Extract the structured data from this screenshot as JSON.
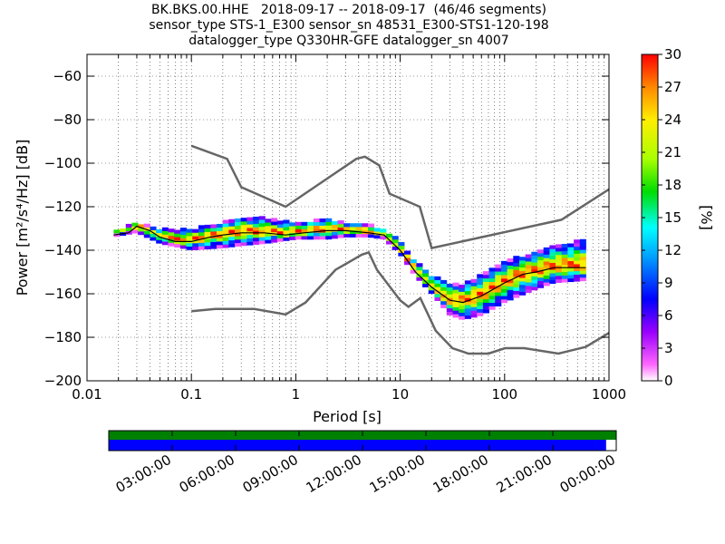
{
  "title": {
    "line1": "BK.BKS.00.HHE   2018-09-17 -- 2018-09-17  (46/46 segments)",
    "line2": "sensor_type STS-1_E300 sensor_sn 48531_E300-STS1-120-198",
    "line3": "datalogger_type Q330HR-GFE datalogger_sn 4007"
  },
  "colors": {
    "noise_model": "#666666",
    "mean_line": "#000000",
    "coverage_top": "#008000",
    "coverage_bottom": "#0000ff"
  },
  "chart_data": [
    {
      "type": "heatmap",
      "xlabel": "Period [s]",
      "ylabel": "Power [m²/s⁴/Hz] [dB]",
      "xscale": "log",
      "xlim": [
        0.01,
        1000
      ],
      "ylim": [
        -200,
        -50
      ],
      "x_ticks": [
        "0.01",
        "0.1",
        "1",
        "10",
        "100",
        "1000"
      ],
      "y_ticks": [
        "−60",
        "−80",
        "−100",
        "−120",
        "−140",
        "−160",
        "−180",
        "−200"
      ],
      "grid": true,
      "colorbar": {
        "label": "[%]",
        "range": [
          0,
          30
        ],
        "ticks": [
          "30",
          "27",
          "24",
          "21",
          "18",
          "15",
          "12",
          "9",
          "6",
          "3",
          "0"
        ]
      },
      "ppsd_curve": [
        {
          "period": 0.018,
          "db": -133
        },
        {
          "period": 0.025,
          "db": -132
        },
        {
          "period": 0.03,
          "db": -129
        },
        {
          "period": 0.04,
          "db": -131
        },
        {
          "period": 0.05,
          "db": -134
        },
        {
          "period": 0.07,
          "db": -136
        },
        {
          "period": 0.1,
          "db": -136
        },
        {
          "period": 0.15,
          "db": -134
        },
        {
          "period": 0.2,
          "db": -133
        },
        {
          "period": 0.3,
          "db": -132
        },
        {
          "period": 0.5,
          "db": -132
        },
        {
          "period": 0.8,
          "db": -133
        },
        {
          "period": 1.2,
          "db": -132
        },
        {
          "period": 2,
          "db": -131
        },
        {
          "period": 3,
          "db": -131
        },
        {
          "period": 5,
          "db": -132
        },
        {
          "period": 7,
          "db": -133
        },
        {
          "period": 10,
          "db": -140
        },
        {
          "period": 14,
          "db": -150
        },
        {
          "period": 20,
          "db": -157
        },
        {
          "period": 30,
          "db": -163
        },
        {
          "period": 40,
          "db": -164
        },
        {
          "period": 60,
          "db": -161
        },
        {
          "period": 100,
          "db": -155
        },
        {
          "period": 150,
          "db": -151
        },
        {
          "period": 200,
          "db": -150
        },
        {
          "period": 300,
          "db": -148
        },
        {
          "period": 600,
          "db": -148
        }
      ],
      "ppsd_spread": [
        {
          "period": 0.018,
          "lo": -134,
          "hi": -132
        },
        {
          "period": 0.03,
          "lo": -132,
          "hi": -128
        },
        {
          "period": 0.05,
          "lo": -137,
          "hi": -131
        },
        {
          "period": 0.1,
          "lo": -140,
          "hi": -131
        },
        {
          "period": 0.2,
          "lo": -139,
          "hi": -128
        },
        {
          "period": 0.3,
          "lo": -138,
          "hi": -125
        },
        {
          "period": 0.5,
          "lo": -137,
          "hi": -126
        },
        {
          "period": 1,
          "lo": -135,
          "hi": -128
        },
        {
          "period": 2,
          "lo": -135,
          "hi": -126
        },
        {
          "period": 3,
          "lo": -134,
          "hi": -128
        },
        {
          "period": 5,
          "lo": -134,
          "hi": -129
        },
        {
          "period": 7,
          "lo": -135,
          "hi": -131
        },
        {
          "period": 10,
          "lo": -142,
          "hi": -136
        },
        {
          "period": 14,
          "lo": -152,
          "hi": -146
        },
        {
          "period": 20,
          "lo": -160,
          "hi": -152
        },
        {
          "period": 30,
          "lo": -170,
          "hi": -156
        },
        {
          "period": 40,
          "lo": -172,
          "hi": -156
        },
        {
          "period": 60,
          "lo": -170,
          "hi": -152
        },
        {
          "period": 100,
          "lo": -164,
          "hi": -146
        },
        {
          "period": 200,
          "lo": -158,
          "hi": -141
        },
        {
          "period": 300,
          "lo": -155,
          "hi": -138
        },
        {
          "period": 600,
          "lo": -154,
          "hi": -136
        }
      ],
      "noise_models": [
        {
          "points": [
            {
              "period": 0.1,
              "db": -92
            },
            {
              "period": 0.22,
              "db": -98
            },
            {
              "period": 0.3,
              "db": -111
            },
            {
              "period": 0.8,
              "db": -120
            },
            {
              "period": 3.8,
              "db": -98
            },
            {
              "period": 4.6,
              "db": -97
            },
            {
              "period": 6.3,
              "db": -101
            },
            {
              "period": 7.9,
              "db": -114
            },
            {
              "period": 15.4,
              "db": -120
            },
            {
              "period": 20,
              "db": -139
            },
            {
              "period": 350,
              "db": -126
            },
            {
              "period": 1000,
              "db": -112
            }
          ]
        },
        {
          "points": [
            {
              "period": 0.1,
              "db": -168
            },
            {
              "period": 0.17,
              "db": -167
            },
            {
              "period": 0.4,
              "db": -167
            },
            {
              "period": 0.8,
              "db": -169.5
            },
            {
              "period": 1.24,
              "db": -164
            },
            {
              "period": 2.4,
              "db": -149
            },
            {
              "period": 4.3,
              "db": -142
            },
            {
              "period": 5,
              "db": -141
            },
            {
              "period": 6,
              "db": -149
            },
            {
              "period": 10,
              "db": -163
            },
            {
              "period": 12,
              "db": -166
            },
            {
              "period": 15.6,
              "db": -162
            },
            {
              "period": 21.9,
              "db": -177
            },
            {
              "period": 31.6,
              "db": -185
            },
            {
              "period": 45,
              "db": -187.5
            },
            {
              "period": 70,
              "db": -187.5
            },
            {
              "period": 101,
              "db": -185
            },
            {
              "period": 154,
              "db": -185
            },
            {
              "period": 328,
              "db": -187.5
            },
            {
              "period": 600,
              "db": -184.4
            },
            {
              "period": 1000,
              "db": -178
            }
          ]
        }
      ]
    },
    {
      "type": "timeline",
      "tick_labels": [
        "03:00:00",
        "06:00:00",
        "09:00:00",
        "12:00:00",
        "15:00:00",
        "18:00:00",
        "21:00:00",
        "00:00:00"
      ],
      "coverage": {
        "top": 1.0,
        "bottom": 0.98
      }
    }
  ]
}
